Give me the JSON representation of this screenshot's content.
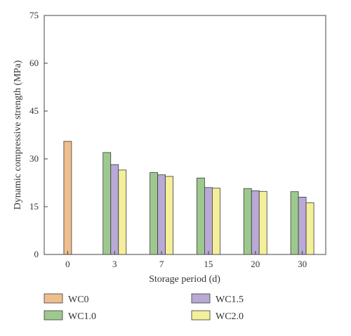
{
  "chart_data": {
    "type": "bar",
    "title": "",
    "xlabel": "Storage period (d)",
    "ylabel": "Dynamic compressive strength (MPa)",
    "ylim": [
      0,
      75
    ],
    "yticks": [
      "0",
      "15",
      "30",
      "45",
      "60",
      "75"
    ],
    "categories": [
      "0",
      "3",
      "7",
      "15",
      "20",
      "30"
    ],
    "series": [
      {
        "name": "WC0",
        "color": "#efbe8e",
        "values": [
          35.5,
          null,
          null,
          null,
          null,
          null
        ]
      },
      {
        "name": "WC1.0",
        "color": "#9dc98f",
        "values": [
          null,
          32.0,
          25.7,
          24.0,
          20.7,
          19.7
        ]
      },
      {
        "name": "WC1.5",
        "color": "#b9a9d6",
        "values": [
          null,
          28.2,
          25.0,
          21.0,
          20.0,
          18.0
        ]
      },
      {
        "name": "WC2.0",
        "color": "#f4ef9a",
        "values": [
          null,
          26.5,
          24.5,
          20.8,
          19.8,
          16.2
        ]
      }
    ],
    "legend_position": "bottom",
    "grid": false
  }
}
